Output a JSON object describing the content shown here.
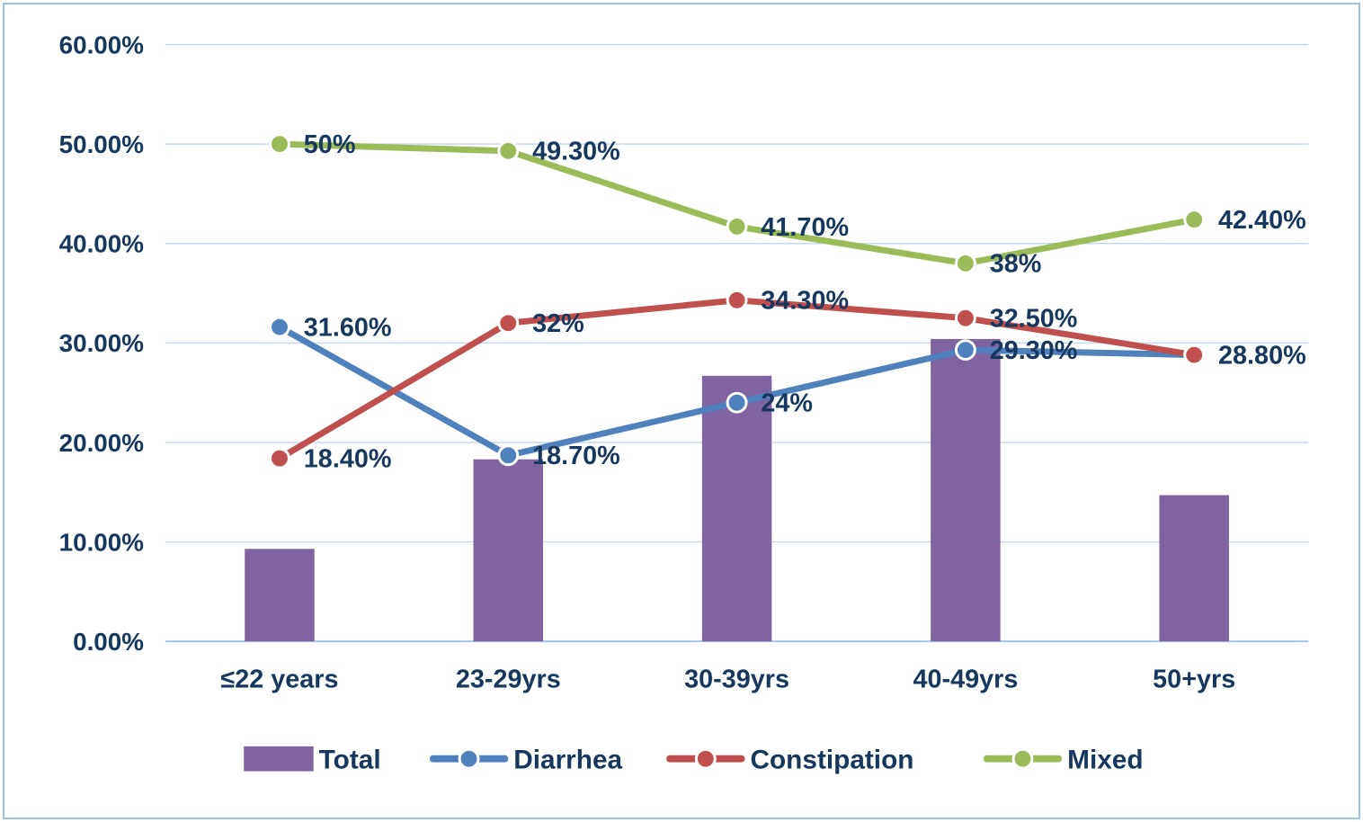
{
  "style": {
    "text": "#17375E",
    "gridline": "#C5D9F1",
    "axis_line": "#A6C3E3",
    "frame_border": "#9CC2E5",
    "background": "#FFFFFF",
    "marker_ring": "#FFFFFF"
  },
  "chart_data": {
    "type": "combo",
    "title": "",
    "xlabel": "",
    "ylabel": "",
    "grid": true,
    "legend_position": "bottom",
    "categories": [
      "≤22 years",
      "23-29yrs",
      "30-39yrs",
      "40-49yrs",
      "50+yrs"
    ],
    "y_axis": {
      "min": 0,
      "max": 60,
      "step": 10,
      "tick_labels": [
        "0.00%",
        "10.00%",
        "20.00%",
        "30.00%",
        "40.00%",
        "50.00%",
        "60.00%"
      ]
    },
    "series": [
      {
        "name": "Total",
        "type": "bar",
        "color": "#8064A2",
        "values": [
          9.3,
          18.3,
          26.7,
          30.4,
          14.7
        ],
        "labels": [
          "",
          "",
          "",
          "",
          ""
        ]
      },
      {
        "name": "Diarrhea",
        "type": "line",
        "color": "#4F81BD",
        "values": [
          31.6,
          18.7,
          24,
          29.3,
          28.8
        ],
        "labels": [
          "31.60%",
          "18.70%",
          "24%",
          "29.30%",
          ""
        ]
      },
      {
        "name": "Constipation",
        "type": "line",
        "color": "#C0504D",
        "values": [
          18.4,
          32,
          34.3,
          32.5,
          28.8
        ],
        "labels": [
          "18.40%",
          "32%",
          "34.30%",
          "32.50%",
          "28.80%"
        ]
      },
      {
        "name": "Mixed",
        "type": "line",
        "color": "#9BBB59",
        "values": [
          50,
          49.3,
          41.7,
          38,
          42.4
        ],
        "labels": [
          "50%",
          "49.30%",
          "41.70%",
          "38%",
          "42.40%"
        ]
      }
    ],
    "legend": [
      "Total",
      "Diarrhea",
      "Constipation",
      "Mixed"
    ]
  }
}
